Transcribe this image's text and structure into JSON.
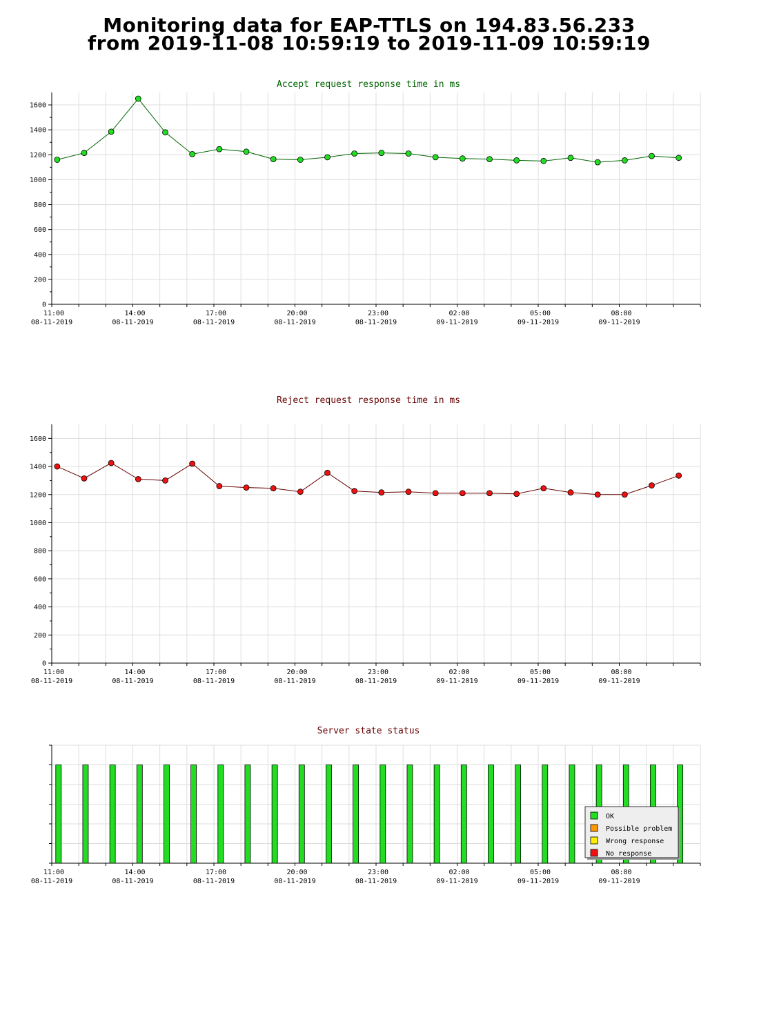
{
  "page": {
    "title_line1": "Monitoring data for EAP-TTLS on 194.83.56.233",
    "title_line2": "from 2019-11-08 10:59:19 to 2019-11-09 10:59:19"
  },
  "x_ticks": [
    {
      "time": "11:00",
      "date": "08-11-2019"
    },
    {
      "time": "14:00",
      "date": "08-11-2019"
    },
    {
      "time": "17:00",
      "date": "08-11-2019"
    },
    {
      "time": "20:00",
      "date": "08-11-2019"
    },
    {
      "time": "23:00",
      "date": "08-11-2019"
    },
    {
      "time": "02:00",
      "date": "09-11-2019"
    },
    {
      "time": "05:00",
      "date": "09-11-2019"
    },
    {
      "time": "08:00",
      "date": "09-11-2019"
    }
  ],
  "chart_data": [
    {
      "type": "line",
      "title": "Accept request response time in ms",
      "title_color": "#006400",
      "line_color": "#006400",
      "marker_color": "#22dd22",
      "ylim": [
        0,
        1700
      ],
      "y_ticks": [
        0,
        200,
        400,
        600,
        800,
        1000,
        1200,
        1400,
        1600
      ],
      "x_hours": [
        0.2,
        1.2,
        2.2,
        3.2,
        4.2,
        5.2,
        6.2,
        7.2,
        8.2,
        9.2,
        10.2,
        11.2,
        12.2,
        13.2,
        14.2,
        15.2,
        16.2,
        17.2,
        18.2,
        19.2,
        20.2,
        21.2,
        22.2,
        23.2
      ],
      "values": [
        1160,
        1215,
        1385,
        1650,
        1380,
        1205,
        1245,
        1225,
        1165,
        1160,
        1180,
        1210,
        1215,
        1210,
        1180,
        1170,
        1165,
        1155,
        1150,
        1175,
        1140,
        1155,
        1190,
        1175
      ],
      "grid": true
    },
    {
      "type": "line",
      "title": "Reject request response time in ms",
      "title_color": "#660000",
      "line_color": "#660000",
      "marker_color": "#ee1111",
      "ylim": [
        0,
        1700
      ],
      "y_ticks": [
        0,
        200,
        400,
        600,
        800,
        1000,
        1200,
        1400,
        1600
      ],
      "x_hours": [
        0.2,
        1.2,
        2.2,
        3.2,
        4.2,
        5.2,
        6.2,
        7.2,
        8.2,
        9.2,
        10.2,
        11.2,
        12.2,
        13.2,
        14.2,
        15.2,
        16.2,
        17.2,
        18.2,
        19.2,
        20.2,
        21.2,
        22.2,
        23.2
      ],
      "values": [
        1400,
        1315,
        1425,
        1310,
        1300,
        1420,
        1260,
        1250,
        1245,
        1220,
        1355,
        1225,
        1215,
        1220,
        1210,
        1210,
        1210,
        1205,
        1245,
        1215,
        1200,
        1200,
        1265,
        1335
      ],
      "grid": true
    },
    {
      "type": "bar",
      "title": "Server state status",
      "title_color": "#660000",
      "x_hours": [
        0.25,
        1.25,
        2.25,
        3.25,
        4.25,
        5.25,
        6.25,
        7.25,
        8.25,
        9.25,
        10.25,
        11.25,
        12.25,
        13.25,
        14.25,
        15.25,
        16.25,
        17.25,
        18.25,
        19.25,
        20.25,
        21.25,
        22.25,
        23.25
      ],
      "states": [
        "OK",
        "OK",
        "OK",
        "OK",
        "OK",
        "OK",
        "OK",
        "OK",
        "OK",
        "OK",
        "OK",
        "OK",
        "OK",
        "OK",
        "OK",
        "OK",
        "OK",
        "OK",
        "OK",
        "OK",
        "OK",
        "OK",
        "OK",
        "OK"
      ],
      "legend_position": "bottom-right",
      "legend": [
        {
          "label": "OK",
          "color": "#22dd22"
        },
        {
          "label": "Possible problem",
          "color": "#ff9900"
        },
        {
          "label": "Wrong response",
          "color": "#ffee00"
        },
        {
          "label": "No response",
          "color": "#ee1111"
        }
      ]
    }
  ]
}
